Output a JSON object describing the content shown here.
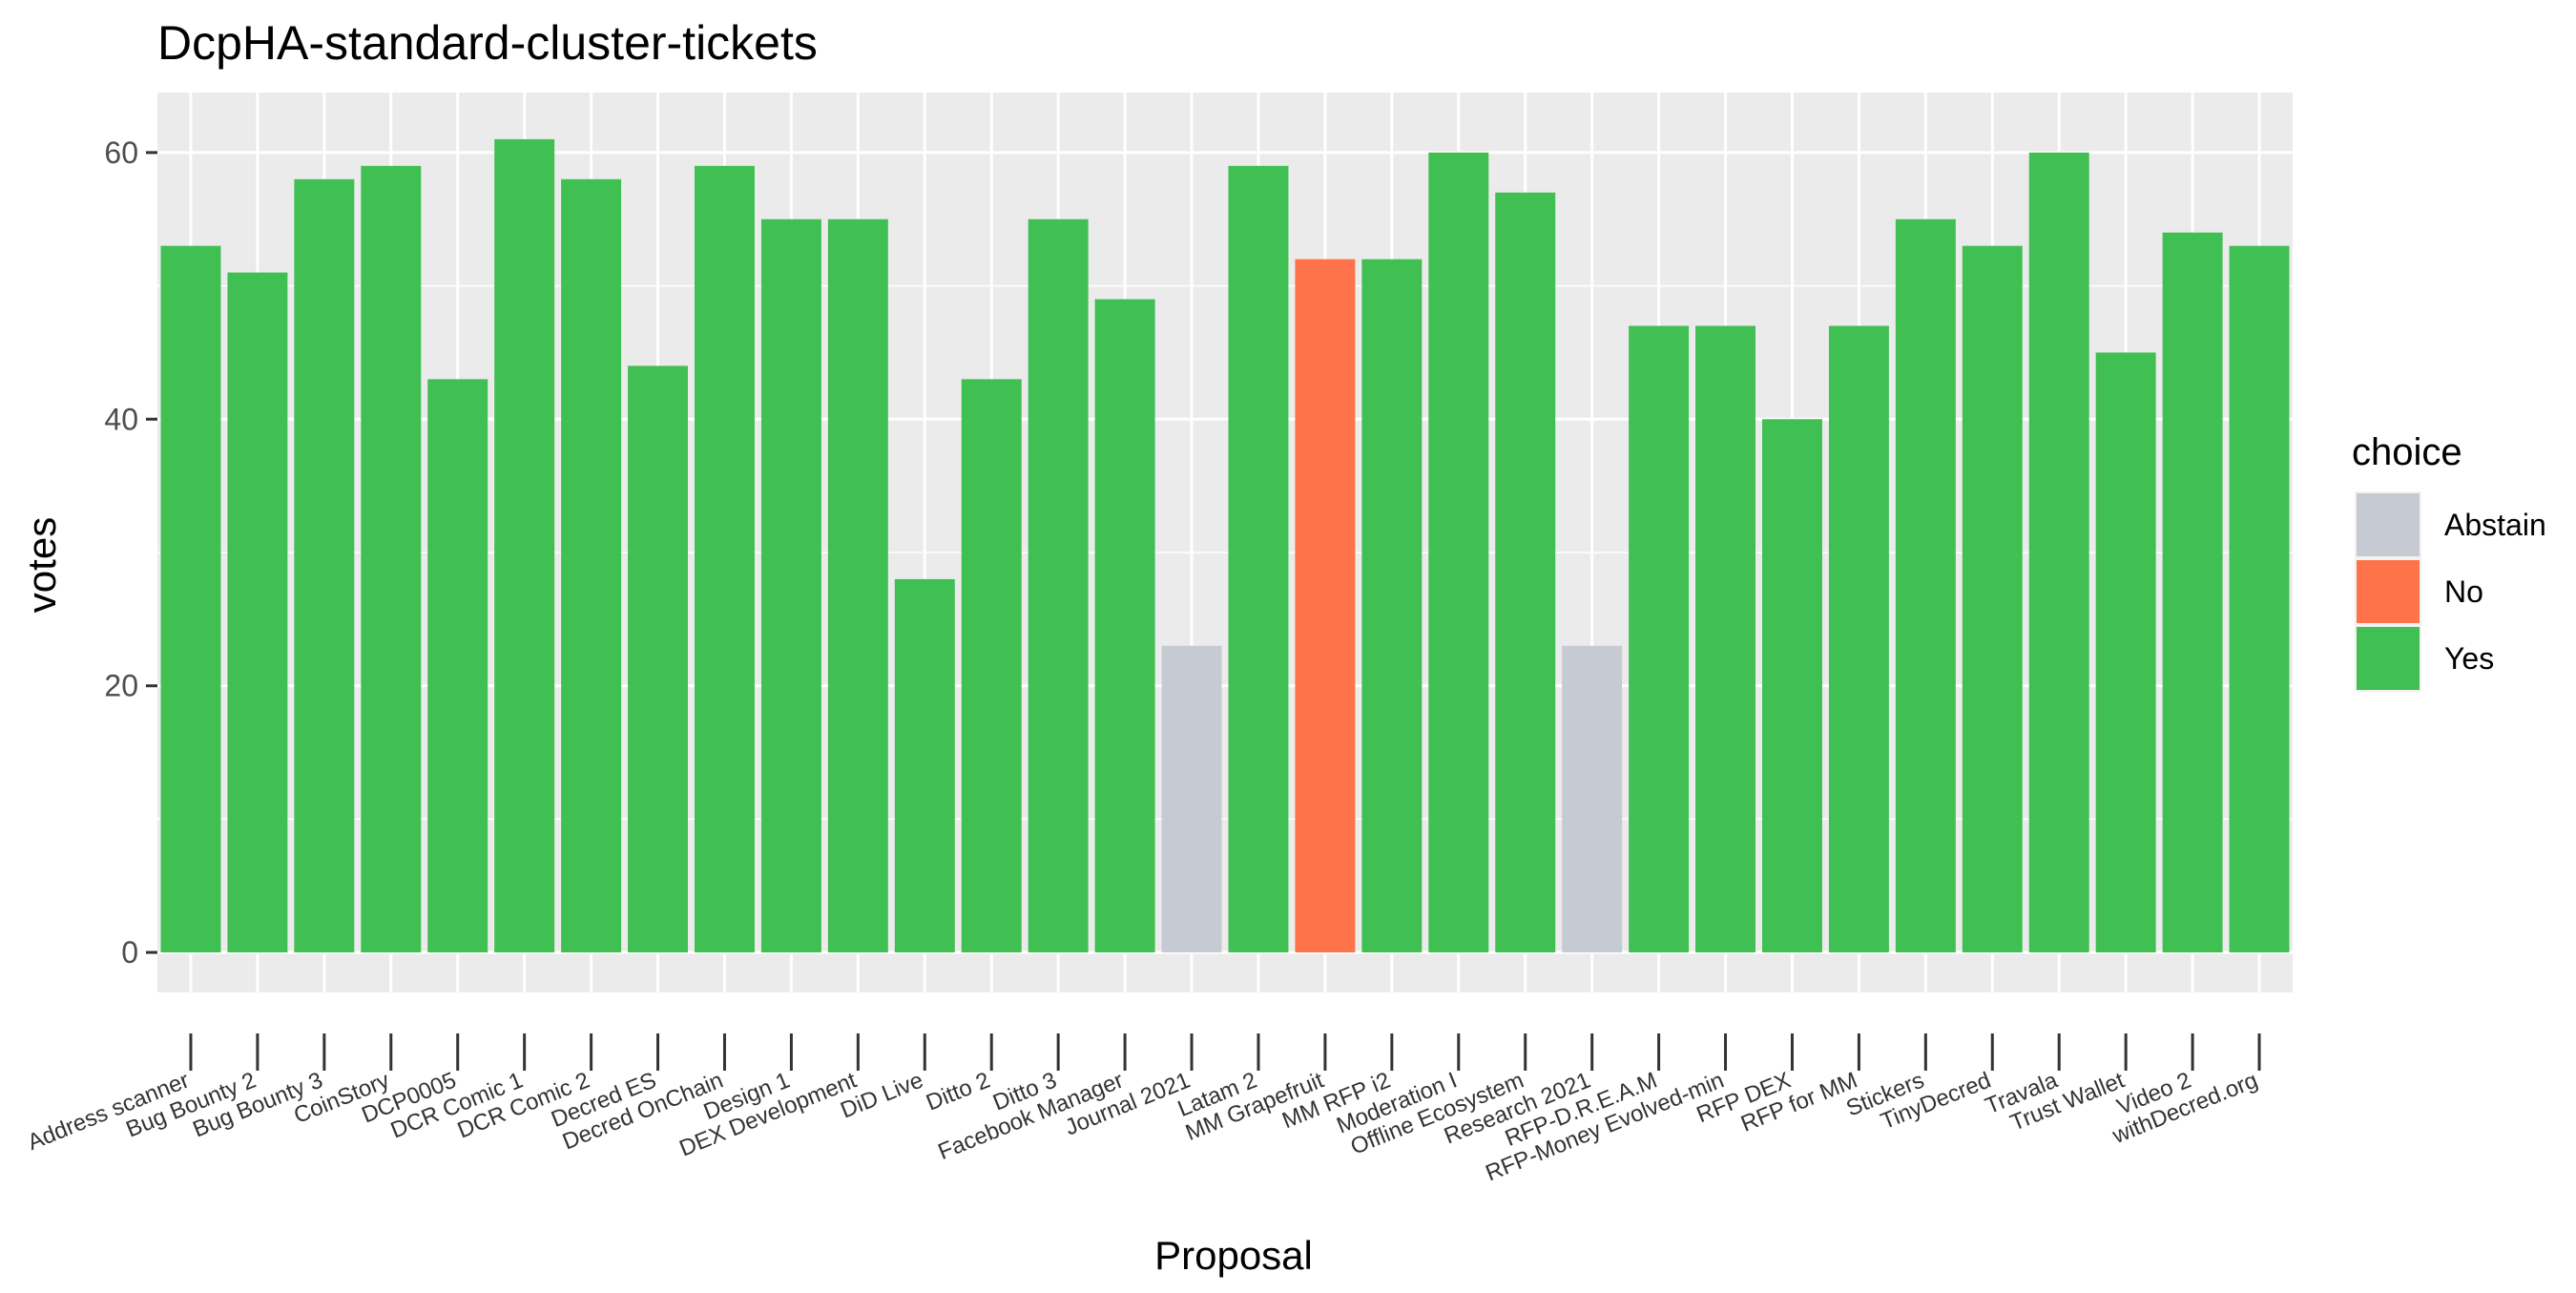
{
  "chart_data": {
    "type": "bar",
    "title": "DcpHA-standard-cluster-tickets",
    "xlabel": "Proposal",
    "ylabel": "votes",
    "ylim": [
      -3,
      64.5
    ],
    "yticks": [
      0,
      20,
      40,
      60
    ],
    "grid": true,
    "legend_position": "right",
    "legend_title": "choice",
    "legend": [
      {
        "label": "Abstain",
        "color": "#C5CAD3"
      },
      {
        "label": "No",
        "color": "#FF734A"
      },
      {
        "label": "Yes",
        "color": "#40BF52"
      }
    ],
    "categories": [
      "Address scanner",
      "Bug Bounty 2",
      "Bug Bounty 3",
      "CoinStory",
      "DCP0005",
      "DCR Comic 1",
      "DCR Comic 2",
      "Decred ES",
      "Decred OnChain",
      "Design 1",
      "DEX Development",
      "DiD Live",
      "Ditto 2",
      "Ditto 3",
      "Facebook Manager",
      "Journal 2021",
      "Latam 2",
      "MM Grapefruit",
      "MM RFP i2",
      "Moderation I",
      "Offline Ecosystem",
      "Research 2021",
      "RFP-D.R.E.A.M",
      "RFP-Money Evolved-min",
      "RFP DEX",
      "RFP for MM",
      "Stickers",
      "TinyDecred",
      "Travala",
      "Trust Wallet",
      "Video 2",
      "withDecred.org"
    ],
    "values": [
      53,
      51,
      58,
      59,
      43,
      61,
      58,
      44,
      59,
      55,
      55,
      28,
      43,
      55,
      49,
      23,
      59,
      52,
      52,
      60,
      57,
      23,
      47,
      47,
      40,
      47,
      55,
      53,
      60,
      45,
      54,
      53
    ],
    "choices": [
      "Yes",
      "Yes",
      "Yes",
      "Yes",
      "Yes",
      "Yes",
      "Yes",
      "Yes",
      "Yes",
      "Yes",
      "Yes",
      "Yes",
      "Yes",
      "Yes",
      "Yes",
      "Abstain",
      "Yes",
      "No",
      "Yes",
      "Yes",
      "Yes",
      "Abstain",
      "Yes",
      "Yes",
      "Yes",
      "Yes",
      "Yes",
      "Yes",
      "Yes",
      "Yes",
      "Yes",
      "Yes"
    ]
  }
}
